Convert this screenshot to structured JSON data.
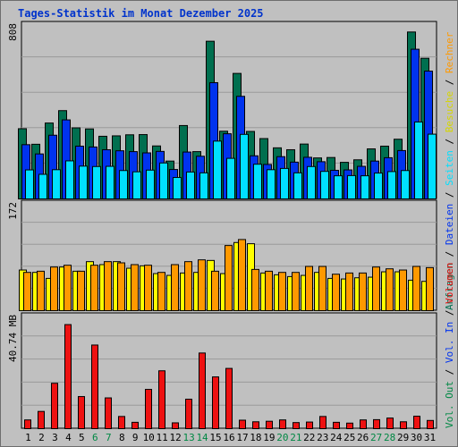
{
  "title": "Tages-Statistik im Monat Dezember 2025",
  "colors": {
    "background": "#c0c0c0",
    "anfragen": "#006f4f",
    "dateien": "#0033ee",
    "seiten": "#00e0ff",
    "besuche": "#ffff00",
    "rechner": "#ff9900",
    "volumen": "#ee1111",
    "title": "#0033cc",
    "weekend": "#008844"
  },
  "chart_data": [
    {
      "type": "bar",
      "name": "hits",
      "ylim": [
        0,
        808
      ],
      "ytick": "808",
      "categories": [
        "1",
        "2",
        "3",
        "4",
        "5",
        "6",
        "7",
        "8",
        "9",
        "10",
        "11",
        "12",
        "13",
        "14",
        "15",
        "16",
        "17",
        "18",
        "19",
        "20",
        "21",
        "22",
        "23",
        "24",
        "25",
        "26",
        "27",
        "28",
        "29",
        "30",
        "31"
      ],
      "weekend_days": [
        "6",
        "7",
        "13",
        "14",
        "20",
        "21",
        "27",
        "28"
      ],
      "series": [
        {
          "name": "Anfragen",
          "values": [
            334,
            260,
            361,
            420,
            338,
            333,
            298,
            300,
            305,
            306,
            252,
            180,
            349,
            225,
            750,
            322,
            597,
            321,
            287,
            243,
            234,
            261,
            195,
            197,
            174,
            186,
            238,
            251,
            284,
            794,
            669
          ]
        },
        {
          "name": "Dateien",
          "values": [
            258,
            214,
            303,
            376,
            251,
            247,
            234,
            229,
            225,
            219,
            226,
            140,
            223,
            203,
            553,
            310,
            488,
            205,
            164,
            201,
            175,
            198,
            177,
            136,
            138,
            155,
            180,
            196,
            230,
            712,
            608
          ]
        },
        {
          "name": "Seiten",
          "values": [
            138,
            117,
            139,
            181,
            156,
            154,
            155,
            135,
            129,
            137,
            171,
            102,
            128,
            124,
            275,
            193,
            307,
            165,
            139,
            145,
            124,
            154,
            131,
            110,
            111,
            110,
            123,
            130,
            135,
            366,
            308
          ]
        }
      ]
    },
    {
      "type": "bar",
      "name": "visits",
      "ylim": [
        0,
        172
      ],
      "ytick": "172",
      "series": [
        {
          "name": "Besuche",
          "values": [
            68,
            64,
            54,
            73,
            66,
            82,
            77,
            82,
            71,
            75,
            62,
            59,
            63,
            64,
            84,
            62,
            114,
            112,
            63,
            60,
            57,
            59,
            64,
            54,
            53,
            55,
            56,
            65,
            65,
            51,
            49
          ]
        },
        {
          "name": "Rechner",
          "values": [
            64,
            66,
            73,
            76,
            66,
            76,
            82,
            80,
            77,
            76,
            64,
            77,
            82,
            85,
            66,
            109,
            119,
            69,
            66,
            64,
            64,
            74,
            74,
            61,
            63,
            63,
            73,
            70,
            68,
            74,
            72
          ]
        }
      ]
    },
    {
      "type": "bar",
      "name": "volume",
      "ylim": [
        0,
        40.74
      ],
      "ytick": "40.74 MB",
      "series": [
        {
          "name": "Volumen",
          "values": [
            3.3,
            6.5,
            17.1,
            39.2,
            12.1,
            31.5,
            11.6,
            4.6,
            2.4,
            14.8,
            21.8,
            2.2,
            11.1,
            28.5,
            19.5,
            22.7,
            3.2,
            2.6,
            2.8,
            3.3,
            2.3,
            2.5,
            4.6,
            2.4,
            2.1,
            3.3,
            3.4,
            4.0,
            2.6,
            4.7,
            3.1
          ]
        }
      ]
    }
  ],
  "legend": {
    "top": [
      {
        "text": "Anfragen",
        "color": "#006f4f"
      },
      {
        "text": " / ",
        "color": "#000000"
      },
      {
        "text": "Dateien",
        "color": "#0033ee"
      },
      {
        "text": " / ",
        "color": "#000000"
      },
      {
        "text": "Seiten",
        "color": "#00e0ff"
      },
      {
        "text": " / ",
        "color": "#000000"
      },
      {
        "text": "Besuche",
        "color": "#d6d600"
      },
      {
        "text": " / ",
        "color": "#000000"
      },
      {
        "text": "Rechner",
        "color": "#ff9900"
      }
    ],
    "bottom": [
      {
        "text": "Vol. Out",
        "color": "#008844"
      },
      {
        "text": " / ",
        "color": "#000000"
      },
      {
        "text": "Vol. In",
        "color": "#0033ee"
      },
      {
        "text": " / ",
        "color": "#000000"
      },
      {
        "text": "Volumen",
        "color": "#ee1111"
      }
    ]
  }
}
